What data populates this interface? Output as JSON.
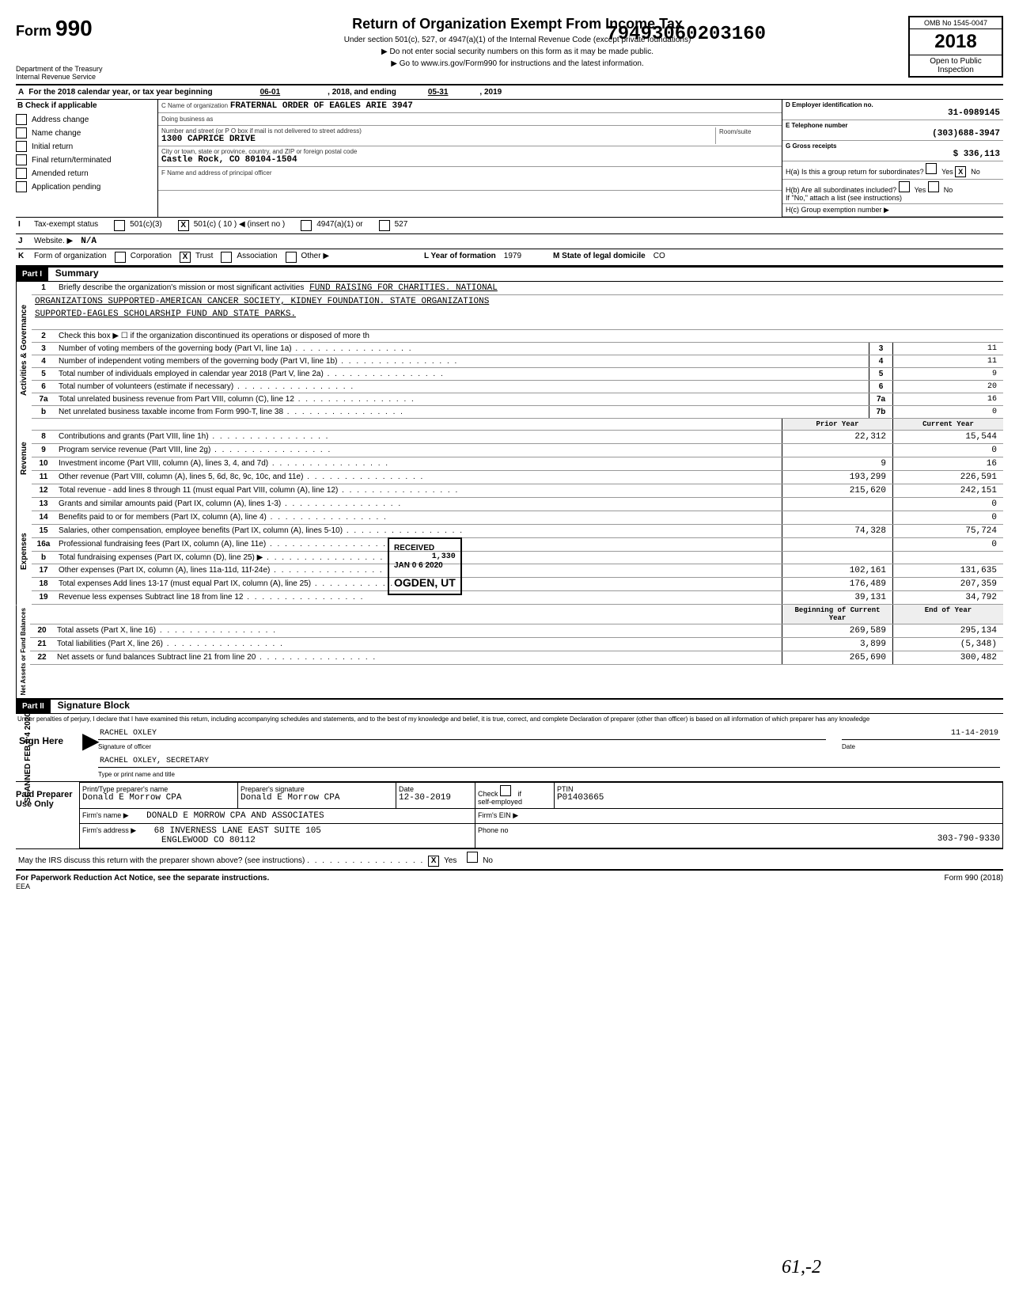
{
  "stamp_number": "79493060203160",
  "header": {
    "form_label": "Form",
    "form_number": "990",
    "title": "Return of Organization Exempt From Income Tax",
    "subtitle1": "Under section 501(c), 527, or 4947(a)(1) of the Internal Revenue Code (except private foundations)",
    "subtitle2": "▶ Do not enter social security numbers on this form as it may be made public.",
    "subtitle3": "▶ Go to www.irs.gov/Form990 for instructions and the latest information.",
    "omb": "OMB No 1545-0047",
    "year": "2018",
    "open_public": "Open to Public",
    "inspection": "Inspection",
    "dept1": "Department of the Treasury",
    "dept2": "Internal Revenue Service"
  },
  "line_a": {
    "text": "For the 2018 calendar year, or tax year beginning",
    "begin_date": "06-01",
    "mid": ", 2018, and ending",
    "end_date": "05-31",
    "end_year": ", 2019"
  },
  "check_b": {
    "label": "Check if applicable",
    "items": [
      "Address change",
      "Name change",
      "Initial return",
      "Final return/terminated",
      "Amended return",
      "Application pending"
    ]
  },
  "org": {
    "name_label": "C  Name of organization",
    "name": "FRATERNAL ORDER OF EAGLES ARIE 3947",
    "dba_label": "Doing business as",
    "street_label": "Number and street (or P O box if mail is not delivered to street address)",
    "street": "1300 CAPRICE DRIVE",
    "room_label": "Room/suite",
    "city_label": "City or town, state or province, country, and ZIP or foreign postal code",
    "city": "Castle Rock, CO 80104-1504",
    "officer_label": "F  Name and address of principal officer"
  },
  "right_d": {
    "label": "D  Employer identification no.",
    "value": "31-0989145",
    "phone_label": "E  Telephone number",
    "phone": "(303)688-3947",
    "gross_label": "G  Gross receipts",
    "gross": "336,113",
    "ha": "H(a) Is this a group return for subordinates?",
    "hb": "H(b) Are all subordinates included?",
    "hc_label": "H(c)  Group exemption number ▶",
    "if_no": "If \"No,\" attach a list (see instructions)"
  },
  "tax_exempt": {
    "label": "Tax-exempt status",
    "c3": "501(c)(3)",
    "c_insert": "501(c) (  10  ) ◀ (insert no )",
    "a1": "4947(a)(1) or",
    "s527": "527"
  },
  "website": {
    "label": "Website. ▶",
    "value": "N/A"
  },
  "form_org": {
    "label": "Form of organization",
    "corp": "Corporation",
    "trust": "Trust",
    "assoc": "Association",
    "other": "Other ▶",
    "year_label": "L  Year of formation",
    "year": "1979",
    "state_label": "M  State of legal domicile",
    "state": "CO"
  },
  "part1": {
    "header": "Part I",
    "title": "Summary",
    "vlabel1": "Activities & Governance",
    "vlabel2": "Revenue",
    "vlabel3": "Expenses",
    "vlabel4": "Net Assets or Fund Balances",
    "line1_label": "Briefly describe the organization's mission or most significant activities",
    "mission1": "FUND RAISING FOR CHARITIES.  NATIONAL",
    "mission2": "ORGANIZATIONS SUPPORTED-AMERICAN CANCER SOCIETY, KIDNEY FOUNDATION.  STATE ORGANIZATIONS",
    "mission3": "SUPPORTED-EAGLES SCHOLARSHIP FUND AND STATE PARKS.",
    "line2": "Check this box ▶ ☐ if the organization discontinued its operations or disposed of more th",
    "lines": [
      {
        "n": "3",
        "t": "Number of voting members of the governing body (Part VI, line 1a)",
        "box": "3",
        "v": "11"
      },
      {
        "n": "4",
        "t": "Number of independent voting members of the governing body (Part VI, line 1b)",
        "box": "4",
        "v": "11"
      },
      {
        "n": "5",
        "t": "Total number of individuals employed in calendar year 2018 (Part V, line 2a)",
        "box": "5",
        "v": "9"
      },
      {
        "n": "6",
        "t": "Total number of volunteers (estimate if necessary)",
        "box": "6",
        "v": "20"
      },
      {
        "n": "7a",
        "t": "Total unrelated business revenue from Part VIII, column (C), line 12",
        "box": "7a",
        "v": "16"
      },
      {
        "n": "b",
        "t": "Net unrelated business taxable income from Form 990-T, line 38",
        "box": "7b",
        "v": "0"
      }
    ],
    "prior_header": "Prior Year",
    "curr_header": "Current Year",
    "rev_lines": [
      {
        "n": "8",
        "t": "Contributions and grants (Part VIII, line 1h)",
        "p": "22,312",
        "c": "15,544"
      },
      {
        "n": "9",
        "t": "Program service revenue (Part VIII, line 2g)",
        "p": "",
        "c": "0"
      },
      {
        "n": "10",
        "t": "Investment income (Part VIII, column (A), lines 3, 4, and 7d)",
        "p": "9",
        "c": "16"
      },
      {
        "n": "11",
        "t": "Other revenue (Part VIII, column (A), lines 5, 6d, 8c, 9c, 10c, and 11e)",
        "p": "193,299",
        "c": "226,591"
      },
      {
        "n": "12",
        "t": "Total revenue - add lines 8 through 11 (must equal Part VIII, column (A), line 12)",
        "p": "215,620",
        "c": "242,151"
      }
    ],
    "exp_lines": [
      {
        "n": "13",
        "t": "Grants and similar amounts paid (Part IX, column (A), lines 1-3)",
        "p": "",
        "c": "0"
      },
      {
        "n": "14",
        "t": "Benefits paid to or for members (Part IX, column (A), line 4)",
        "p": "",
        "c": "0"
      },
      {
        "n": "15",
        "t": "Salaries, other compensation, employee benefits (Part IX, column (A), lines 5-10)",
        "p": "74,328",
        "c": "75,724"
      },
      {
        "n": "16a",
        "t": "Professional fundraising fees (Part IX, column (A), line 11e)",
        "p": "",
        "c": "0"
      },
      {
        "n": "b",
        "t": "Total fundraising expenses (Part IX, column (D), line 25)  ▶",
        "p": "",
        "c": ""
      },
      {
        "n": "17",
        "t": "Other expenses (Part IX, column (A), lines 11a-11d, 11f-24e)",
        "p": "102,161",
        "c": "131,635"
      },
      {
        "n": "18",
        "t": "Total expenses  Add lines 13-17 (must equal Part IX, column (A), line 25)",
        "p": "176,489",
        "c": "207,359"
      },
      {
        "n": "19",
        "t": "Revenue less expenses  Subtract line 18 from line 12",
        "p": "39,131",
        "c": "34,792"
      }
    ],
    "net_begin_header": "Beginning of Current Year",
    "net_end_header": "End of Year",
    "net_lines": [
      {
        "n": "20",
        "t": "Total assets (Part X, line 16)",
        "p": "269,589",
        "c": "295,134"
      },
      {
        "n": "21",
        "t": "Total liabilities (Part X, line 26)",
        "p": "3,899",
        "c": "(5,348)"
      },
      {
        "n": "22",
        "t": "Net assets or fund balances  Subtract line 21 from line 20",
        "p": "265,690",
        "c": "300,482"
      }
    ],
    "received_stamp": "RECEIVED",
    "received_date": "JAN 0 6 2020",
    "received_loc": "OGDEN, UT",
    "received_amt": "1,330"
  },
  "part2": {
    "header": "Part II",
    "title": "Signature Block",
    "penalty": "Under penalties of perjury, I declare that I have examined this return, including accompanying schedules and statements, and to the best of my knowledge and belief, it is true, correct, and complete  Declaration of preparer (other than officer) is based on all information of which preparer has any knowledge",
    "sign_here": "Sign Here",
    "sig_name": "RACHEL OXLEY",
    "sig_officer": "Signature of officer",
    "sig_date": "11-14-2019",
    "sig_date_label": "Date",
    "sig_title": "RACHEL OXLEY, SECRETARY",
    "sig_title_label": "Type or print name and title",
    "paid_label": "Paid Preparer Use Only",
    "prep_name_label": "Print/Type preparer's name",
    "prep_name": "Donald E Morrow   CPA",
    "prep_sig_label": "Preparer's signature",
    "prep_sig": "Donald E Morrow  CPA",
    "prep_date_label": "Date",
    "prep_date": "12-30-2019",
    "check_label": "Check",
    "self_emp": "self-employed",
    "ptin_label": "PTIN",
    "ptin": "P01403665",
    "firm_name_label": "Firm's name ▶",
    "firm_name": "DONALD E MORROW CPA AND ASSOCIATES",
    "firm_ein_label": "Firm's EIN ▶",
    "firm_addr_label": "Firm's address ▶",
    "firm_addr1": "68 INVERNESS LANE EAST  SUITE 105",
    "firm_addr2": "ENGLEWOOD CO 80112",
    "phone_label": "Phone no",
    "phone": "303-790-9330",
    "discuss": "May the IRS discuss this return with the preparer shown above? (see instructions)",
    "yes": "Yes",
    "no": "No"
  },
  "footer": {
    "paperwork": "For Paperwork Reduction Act Notice, see the separate instructions.",
    "eea": "EEA",
    "form": "Form 990 (2018)"
  },
  "hand_note": "61,-2",
  "vertical_stamp": "SCANNED FEB 0 4 2020"
}
